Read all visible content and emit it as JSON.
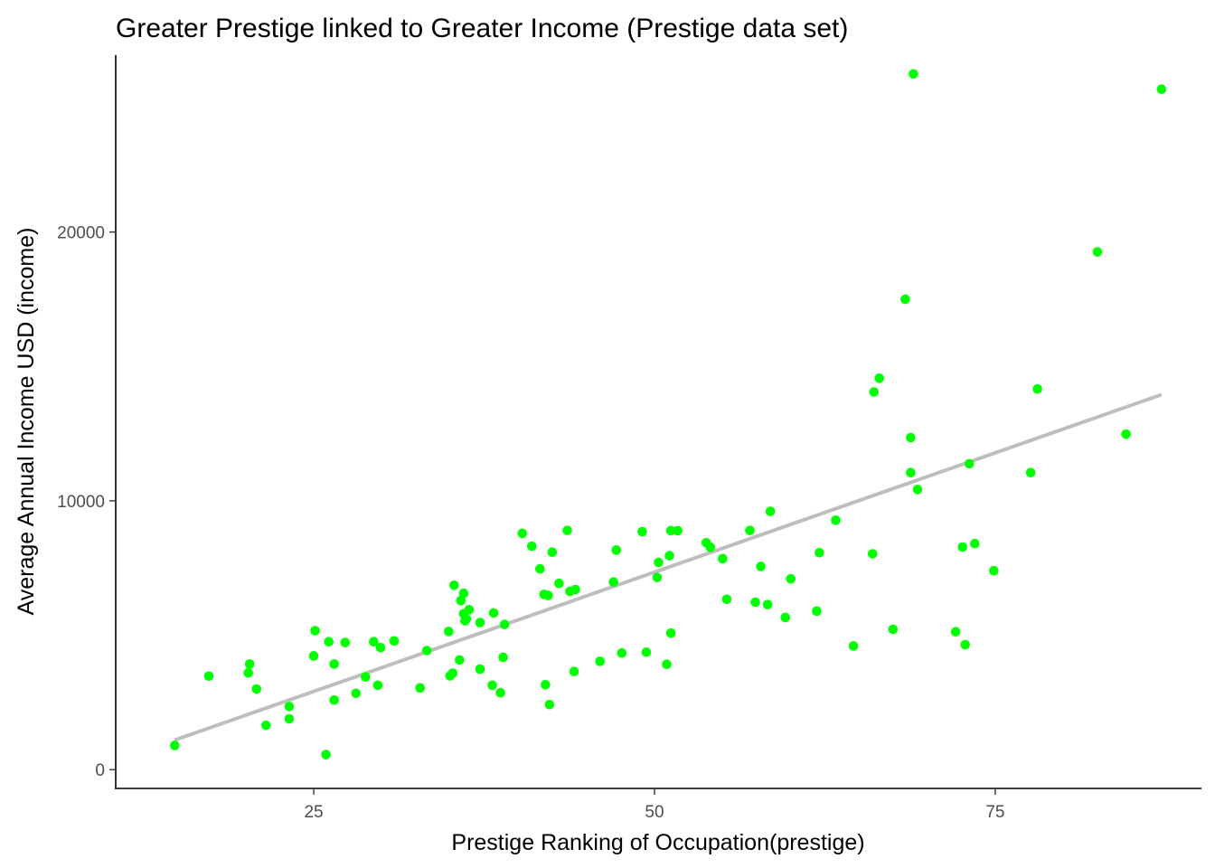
{
  "chart_data": {
    "type": "scatter",
    "title": "Greater Prestige linked to Greater Income (Prestige data set)",
    "xlabel": "Prestige Ranking of Occupation(prestige)",
    "ylabel": "Average Annual Income USD (income)",
    "xlim": [
      10.47,
      90.13
    ],
    "ylim": [
      -698,
      26578
    ],
    "x_ticks": [
      {
        "value": 25,
        "label": "25"
      },
      {
        "value": 50,
        "label": "50"
      },
      {
        "value": 75,
        "label": "75"
      }
    ],
    "y_ticks": [
      {
        "value": 0,
        "label": "0"
      },
      {
        "value": 10000,
        "label": "10000"
      },
      {
        "value": 20000,
        "label": "20000"
      }
    ],
    "grid": false,
    "legend": "none",
    "point_color": "#00FF00",
    "trend_color": "#BEBEBE",
    "trend_line": {
      "x": [
        14.8,
        87.2
      ],
      "y": [
        1100,
        13950
      ]
    },
    "points": [
      {
        "x": 14.8,
        "y": 900
      },
      {
        "x": 17.3,
        "y": 3480
      },
      {
        "x": 20.2,
        "y": 3600
      },
      {
        "x": 20.3,
        "y": 3930
      },
      {
        "x": 20.8,
        "y": 3000
      },
      {
        "x": 21.5,
        "y": 1650
      },
      {
        "x": 23.2,
        "y": 2350
      },
      {
        "x": 23.2,
        "y": 1890
      },
      {
        "x": 25.0,
        "y": 4230
      },
      {
        "x": 25.1,
        "y": 5170
      },
      {
        "x": 25.9,
        "y": 560
      },
      {
        "x": 26.1,
        "y": 4760
      },
      {
        "x": 26.5,
        "y": 3930
      },
      {
        "x": 26.5,
        "y": 2590
      },
      {
        "x": 27.3,
        "y": 4730
      },
      {
        "x": 28.1,
        "y": 2840
      },
      {
        "x": 28.8,
        "y": 3450
      },
      {
        "x": 29.4,
        "y": 4760
      },
      {
        "x": 29.7,
        "y": 3140
      },
      {
        "x": 29.9,
        "y": 4540
      },
      {
        "x": 30.9,
        "y": 4790
      },
      {
        "x": 32.8,
        "y": 3040
      },
      {
        "x": 33.3,
        "y": 4430
      },
      {
        "x": 34.9,
        "y": 5140
      },
      {
        "x": 35.0,
        "y": 3490
      },
      {
        "x": 35.2,
        "y": 3590
      },
      {
        "x": 35.3,
        "y": 6860
      },
      {
        "x": 35.7,
        "y": 4080
      },
      {
        "x": 35.8,
        "y": 6290
      },
      {
        "x": 36.0,
        "y": 6560
      },
      {
        "x": 36.0,
        "y": 5800
      },
      {
        "x": 36.1,
        "y": 5540
      },
      {
        "x": 36.2,
        "y": 5610
      },
      {
        "x": 36.4,
        "y": 5950
      },
      {
        "x": 37.2,
        "y": 3740
      },
      {
        "x": 37.2,
        "y": 5470
      },
      {
        "x": 38.1,
        "y": 3140
      },
      {
        "x": 38.2,
        "y": 5830
      },
      {
        "x": 38.7,
        "y": 2860
      },
      {
        "x": 38.9,
        "y": 4180
      },
      {
        "x": 39.0,
        "y": 5400
      },
      {
        "x": 40.3,
        "y": 8790
      },
      {
        "x": 41.0,
        "y": 8310
      },
      {
        "x": 41.6,
        "y": 7470
      },
      {
        "x": 41.9,
        "y": 6520
      },
      {
        "x": 42.0,
        "y": 3160
      },
      {
        "x": 42.2,
        "y": 6480
      },
      {
        "x": 42.3,
        "y": 2420
      },
      {
        "x": 42.5,
        "y": 8090
      },
      {
        "x": 43.0,
        "y": 6930
      },
      {
        "x": 43.6,
        "y": 8900
      },
      {
        "x": 43.8,
        "y": 6630
      },
      {
        "x": 44.1,
        "y": 3650
      },
      {
        "x": 44.2,
        "y": 6700
      },
      {
        "x": 46.0,
        "y": 4030
      },
      {
        "x": 47.0,
        "y": 6980
      },
      {
        "x": 47.2,
        "y": 8170
      },
      {
        "x": 47.6,
        "y": 4340
      },
      {
        "x": 49.1,
        "y": 8850
      },
      {
        "x": 49.4,
        "y": 4370
      },
      {
        "x": 50.2,
        "y": 7150
      },
      {
        "x": 50.3,
        "y": 7710
      },
      {
        "x": 50.9,
        "y": 3920
      },
      {
        "x": 51.1,
        "y": 7960
      },
      {
        "x": 51.2,
        "y": 5080
      },
      {
        "x": 51.2,
        "y": 8890
      },
      {
        "x": 51.7,
        "y": 8890
      },
      {
        "x": 53.8,
        "y": 8440
      },
      {
        "x": 54.1,
        "y": 8270
      },
      {
        "x": 55.0,
        "y": 7850
      },
      {
        "x": 55.3,
        "y": 6340
      },
      {
        "x": 57.0,
        "y": 8900
      },
      {
        "x": 57.4,
        "y": 6230
      },
      {
        "x": 57.8,
        "y": 7560
      },
      {
        "x": 58.3,
        "y": 6140
      },
      {
        "x": 58.5,
        "y": 9610
      },
      {
        "x": 59.6,
        "y": 5660
      },
      {
        "x": 60.0,
        "y": 7100
      },
      {
        "x": 61.9,
        "y": 5900
      },
      {
        "x": 62.1,
        "y": 8070
      },
      {
        "x": 63.3,
        "y": 9280
      },
      {
        "x": 64.6,
        "y": 4600
      },
      {
        "x": 66.0,
        "y": 8030
      },
      {
        "x": 66.1,
        "y": 14050
      },
      {
        "x": 66.5,
        "y": 14560
      },
      {
        "x": 67.5,
        "y": 5220
      },
      {
        "x": 68.4,
        "y": 17500
      },
      {
        "x": 68.8,
        "y": 12350
      },
      {
        "x": 68.8,
        "y": 11050
      },
      {
        "x": 69.0,
        "y": 25880
      },
      {
        "x": 69.3,
        "y": 10420
      },
      {
        "x": 72.1,
        "y": 5130
      },
      {
        "x": 72.6,
        "y": 8280
      },
      {
        "x": 72.8,
        "y": 4650
      },
      {
        "x": 73.1,
        "y": 11380
      },
      {
        "x": 73.5,
        "y": 8410
      },
      {
        "x": 74.9,
        "y": 7400
      },
      {
        "x": 77.6,
        "y": 11050
      },
      {
        "x": 78.1,
        "y": 14160
      },
      {
        "x": 82.5,
        "y": 19260
      },
      {
        "x": 84.6,
        "y": 12480
      },
      {
        "x": 87.2,
        "y": 25310
      }
    ]
  }
}
